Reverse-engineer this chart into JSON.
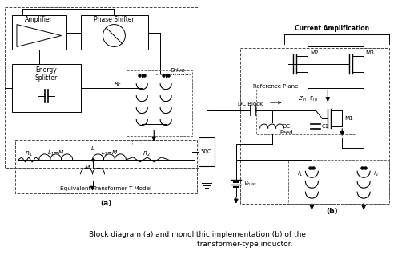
{
  "title_line1": "Block diagram (a) and monolithic implementation (b) of the",
  "title_line2": "transformer-type inductor.",
  "bg_color": "#ffffff",
  "fig_width": 4.92,
  "fig_height": 3.34,
  "dpi": 100,
  "label_a": "(a)",
  "label_b": "(b)"
}
